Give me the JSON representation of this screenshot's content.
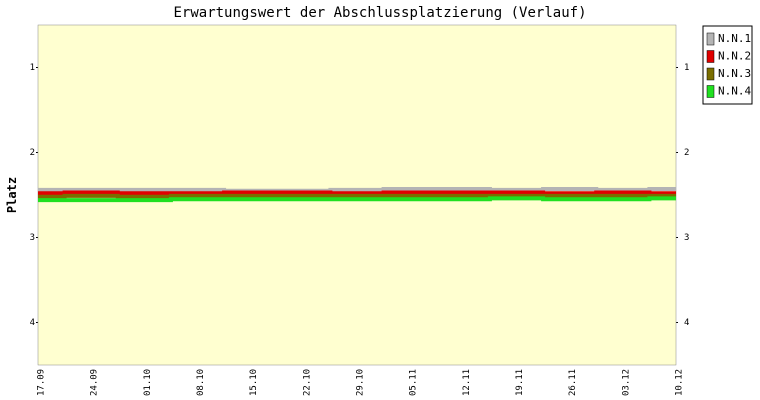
{
  "chart_data": {
    "type": "line",
    "title": "Erwartungswert der Abschlussplatzierung (Verlauf)",
    "y_label": "Platz",
    "categories": [
      "17.09",
      "24.09",
      "01.10",
      "08.10",
      "15.10",
      "22.10",
      "29.10",
      "05.11",
      "12.11",
      "19.11",
      "26.11",
      "03.12",
      "10.12"
    ],
    "series": [
      {
        "name": "N.N.1",
        "color": "#b4b4b4",
        "values": [
          2.44,
          2.44,
          2.44,
          2.44,
          2.45,
          2.45,
          2.44,
          2.43,
          2.43,
          2.44,
          2.43,
          2.44,
          2.43
        ]
      },
      {
        "name": "N.N.2",
        "color": "#e00000",
        "values": [
          2.48,
          2.47,
          2.48,
          2.48,
          2.47,
          2.47,
          2.48,
          2.47,
          2.47,
          2.47,
          2.48,
          2.47,
          2.48
        ]
      },
      {
        "name": "N.N.3",
        "color": "#7a6e00",
        "values": [
          2.52,
          2.51,
          2.52,
          2.51,
          2.51,
          2.51,
          2.51,
          2.51,
          2.51,
          2.51,
          2.51,
          2.51,
          2.51
        ]
      },
      {
        "name": "N.N.4",
        "color": "#20e020",
        "values": [
          2.56,
          2.56,
          2.56,
          2.55,
          2.55,
          2.55,
          2.55,
          2.55,
          2.55,
          2.54,
          2.55,
          2.55,
          2.54
        ]
      }
    ],
    "ylim": [
      4.5,
      0.5
    ],
    "yticks": [
      1,
      2,
      3,
      4
    ]
  }
}
